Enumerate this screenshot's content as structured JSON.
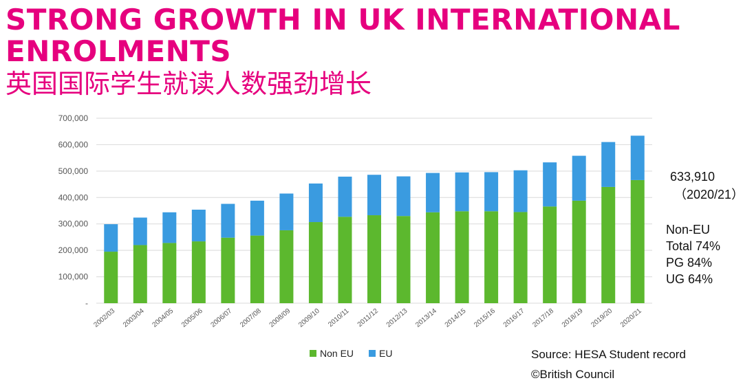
{
  "title_en": "STRONG GROWTH IN UK INTERNATIONAL ENROLMENTS",
  "title_zh": "英国国际学生就读人数强劲增长",
  "annotation": {
    "total": "633,910",
    "year": "（2020/21）",
    "lines": [
      "Non-EU",
      "Total 74%",
      "PG 84%",
      "UG 64%"
    ]
  },
  "legend": [
    {
      "label": "Non EU",
      "color": "#5cb82e"
    },
    {
      "label": "EU",
      "color": "#3a9be0"
    }
  ],
  "source": "Source: HESA Student record",
  "copyright": "©British Council",
  "chart_data": {
    "type": "bar",
    "stacked": true,
    "categories": [
      "2002/03",
      "2003/04",
      "2004/05",
      "2005/06",
      "2006/07",
      "2007/08",
      "2008/09",
      "2009/10",
      "2010/11",
      "2011/12",
      "2012/13",
      "2013/14",
      "2014/15",
      "2015/16",
      "2016/17",
      "2017/18",
      "2018/19",
      "2019/20",
      "2020/21"
    ],
    "series": [
      {
        "name": "Non EU",
        "color": "#5cb82e",
        "values": [
          195000,
          220000,
          228000,
          234000,
          248000,
          256000,
          276000,
          307000,
          327000,
          333000,
          330000,
          344000,
          348000,
          348000,
          345000,
          366000,
          388000,
          440000,
          466000
        ]
      },
      {
        "name": "EU",
        "color": "#3a9be0",
        "values": [
          104000,
          104000,
          116000,
          120000,
          128000,
          132000,
          139000,
          146000,
          152000,
          153000,
          150000,
          149000,
          147000,
          148000,
          158000,
          167000,
          170000,
          170000,
          168000
        ]
      }
    ],
    "ylim": [
      0,
      700000
    ],
    "yticks": [
      0,
      100000,
      200000,
      300000,
      400000,
      500000,
      600000,
      700000
    ],
    "ytick_labels": [
      "-",
      "100,000",
      "200,000",
      "300,000",
      "400,000",
      "500,000",
      "600,000",
      "700,000"
    ],
    "grid": true,
    "legend_position": "bottom"
  }
}
